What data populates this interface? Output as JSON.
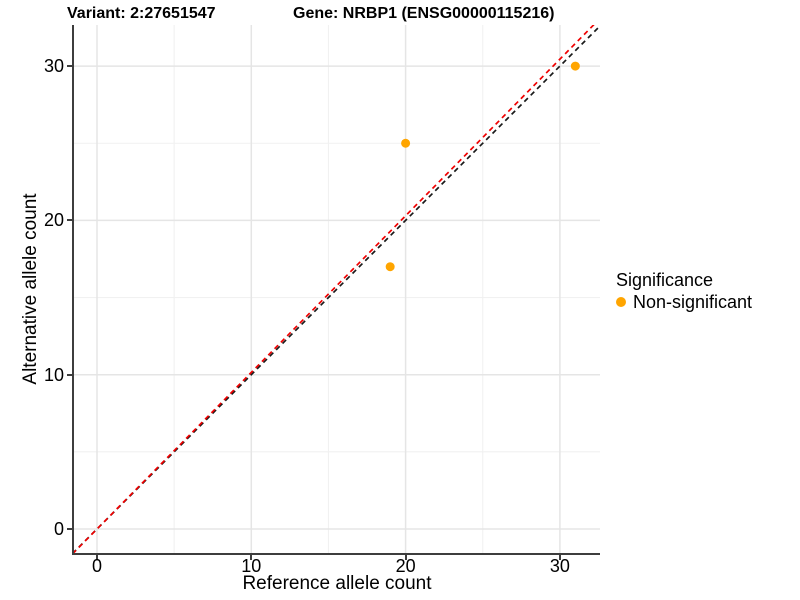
{
  "titles": {
    "left": "Variant: 2:27651547",
    "right": "Gene: NRBP1 (ENSG00000115216)"
  },
  "legend": {
    "title": "Significance",
    "items": [
      {
        "label": "Non-significant",
        "color": "#FFA500"
      }
    ]
  },
  "chart_data": {
    "type": "scatter",
    "title": "Variant: 2:27651547   Gene: NRBP1 (ENSG00000115216)",
    "xlabel": "Reference allele count",
    "ylabel": "Alternative allele count",
    "xlim": [
      -1.6,
      32.8
    ],
    "ylim": [
      -1.6,
      32.7
    ],
    "x_ticks": [
      0,
      10,
      20,
      30
    ],
    "y_ticks": [
      0,
      10,
      20,
      30
    ],
    "minor_ticks": [
      5,
      15,
      25
    ],
    "grid": true,
    "legend_position": "right",
    "series": [
      {
        "name": "Non-significant",
        "color": "#FFA500",
        "points": [
          {
            "x": 19,
            "y": 17
          },
          {
            "x": 20,
            "y": 25
          },
          {
            "x": 31,
            "y": 30
          }
        ]
      }
    ],
    "lines": [
      {
        "name": "identity",
        "slope": 1,
        "intercept": 0,
        "color": "#1a1a1a",
        "style": "dashed"
      },
      {
        "name": "fit",
        "slope": 1.015,
        "intercept": 0,
        "color": "#f00000",
        "style": "dashed"
      }
    ],
    "colors": {
      "grid_major": "#e5e5e5",
      "grid_minor": "#f1f1f1",
      "axis_line": "#3d3d3d",
      "point": "#FFA500"
    }
  }
}
